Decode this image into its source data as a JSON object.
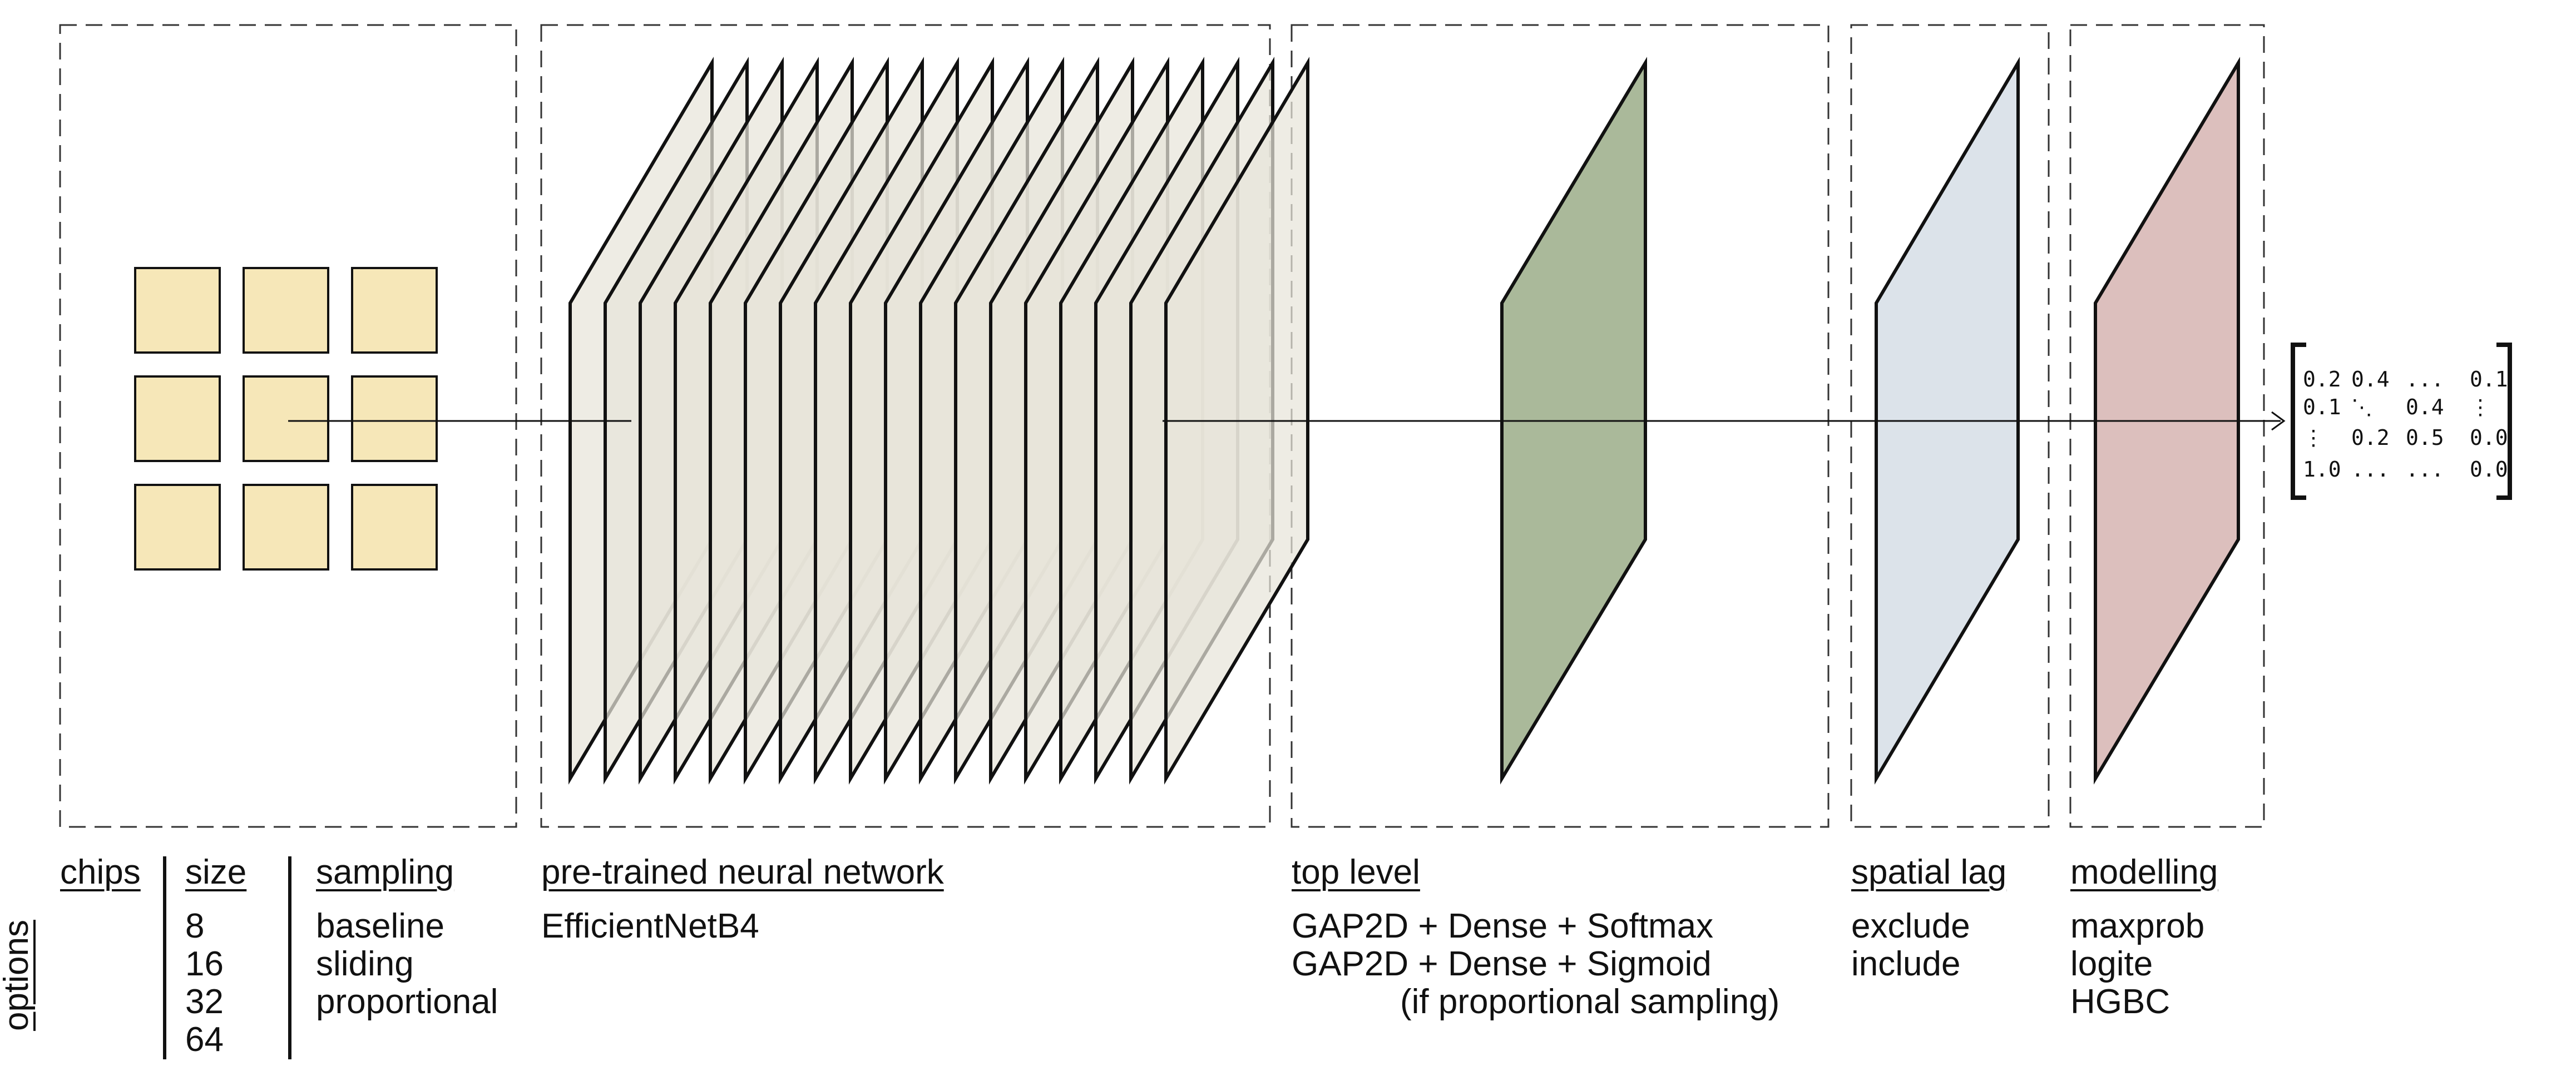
{
  "colors": {
    "chip_fill": "#f6e7b8",
    "network_layer_fill": "#e8e4da",
    "top_level_fill": "#aab99a",
    "spatial_lag_fill": "#dce3ea",
    "modelling_fill": "#dcbfbd",
    "stroke": "#111111"
  },
  "options_label": "options",
  "chips": {
    "header": "chips",
    "size_header": "size",
    "sizes": [
      "8",
      "16",
      "32",
      "64"
    ],
    "sampling_header": "sampling",
    "sampling": [
      "baseline",
      "sliding",
      "proportional"
    ]
  },
  "network": {
    "header": "pre-trained neural network",
    "options": [
      "EfficientNetB4"
    ],
    "layer_count": 18
  },
  "top_level": {
    "header": "top level",
    "options": [
      "GAP2D + Dense + Softmax",
      "GAP2D + Dense + Sigmoid"
    ],
    "note": "(if proportional sampling)"
  },
  "spatial_lag": {
    "header": "spatial lag",
    "options": [
      "exclude",
      "include"
    ]
  },
  "modelling": {
    "header": "modelling",
    "options": [
      "maxprob",
      "logite",
      "HGBC"
    ]
  },
  "output_matrix": {
    "rows": [
      [
        "0.2",
        "0.4",
        "...",
        "0.1"
      ],
      [
        "0.1",
        "⋱",
        "0.4",
        "⋮"
      ],
      [
        "⋮",
        "0.2",
        "0.5",
        "0.0"
      ],
      [
        "1.0",
        "...",
        "...",
        "0.0"
      ]
    ]
  }
}
